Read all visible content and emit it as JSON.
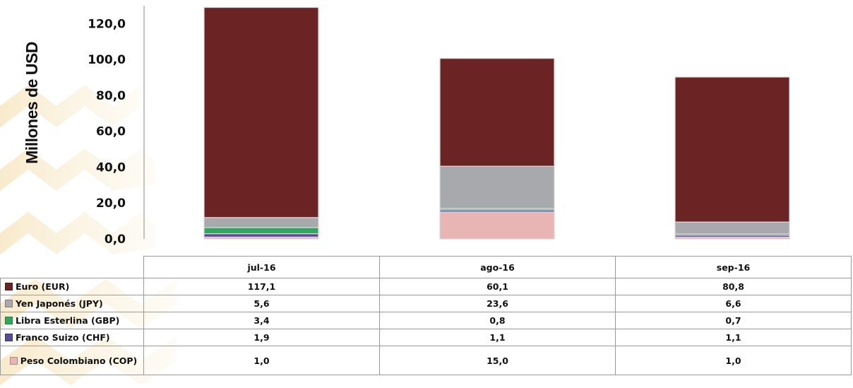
{
  "chart_data": {
    "type": "bar",
    "stacked": true,
    "categories": [
      "jul-16",
      "ago-16",
      "sep-16"
    ],
    "series": [
      {
        "name": "Peso Colombiano (COP)",
        "values": [
          1.0,
          15.0,
          1.0
        ],
        "color": "#e8b4b4"
      },
      {
        "name": "Franco Suizo (CHF)",
        "values": [
          1.9,
          1.1,
          1.1
        ],
        "color": "#5a4a9a"
      },
      {
        "name": "Libra Esterlina (GBP)",
        "values": [
          3.4,
          0.8,
          0.7
        ],
        "color": "#2aaa5a"
      },
      {
        "name": "Yen Japonés (JPY)",
        "values": [
          5.6,
          23.6,
          6.6
        ],
        "color": "#a7a9ac"
      },
      {
        "name": "Euro (EUR)",
        "values": [
          117.1,
          60.1,
          80.8
        ],
        "color": "#6b2323"
      }
    ],
    "ylabel": "Millones de USD",
    "ylim": [
      0,
      130
    ],
    "yticks": [
      "0,0",
      "20,0",
      "40,0",
      "60,0",
      "80,0",
      "100,0",
      "120,0"
    ],
    "grid": false,
    "legend": "data-table"
  },
  "table": {
    "headers": [
      "jul-16",
      "ago-16",
      "sep-16"
    ],
    "rows": [
      {
        "label": "Euro (EUR)",
        "color": "#6b2323",
        "values": [
          "117,1",
          "60,1",
          "80,8"
        ]
      },
      {
        "label": "Yen Japonés (JPY)",
        "color": "#a7a9ac",
        "values": [
          "5,6",
          "23,6",
          "6,6"
        ]
      },
      {
        "label": "Libra Esterlina (GBP)",
        "color": "#2aaa5a",
        "values": [
          "3,4",
          "0,8",
          "0,7"
        ]
      },
      {
        "label": "Franco Suizo (CHF)",
        "color": "#5a4a9a",
        "values": [
          "1,9",
          "1,1",
          "1,1"
        ]
      },
      {
        "label": "Peso Colombiano (COP)",
        "color": "#e8b4b4",
        "values": [
          "1,0",
          "15,0",
          "1,0"
        ]
      }
    ]
  }
}
